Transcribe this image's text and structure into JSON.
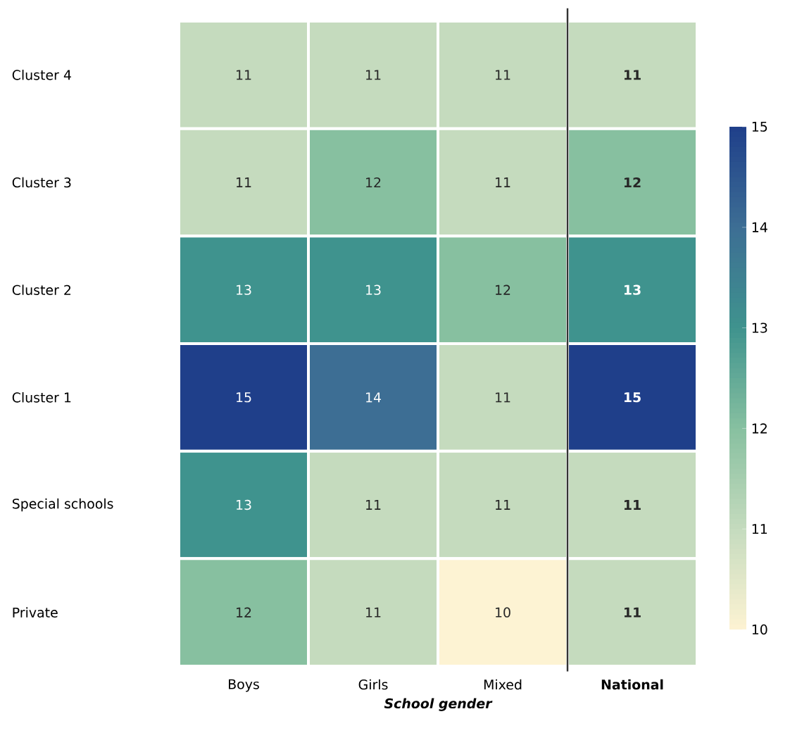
{
  "chart_data": {
    "type": "heatmap",
    "xlabel": "School gender",
    "categories": [
      "Boys",
      "Girls",
      "Mixed",
      "National"
    ],
    "y_categories": [
      "Cluster 4",
      "Cluster 3",
      "Cluster 2",
      "Cluster 1",
      "Special schools",
      "Private"
    ],
    "cells": [
      [
        11,
        11,
        11,
        11
      ],
      [
        11,
        12,
        11,
        12
      ],
      [
        13,
        13,
        12,
        13
      ],
      [
        15,
        14,
        11,
        15
      ],
      [
        13,
        11,
        11,
        11
      ],
      [
        12,
        11,
        10,
        11
      ]
    ],
    "clim": [
      10,
      15
    ],
    "cticks": [
      10,
      11,
      12,
      13,
      14,
      15
    ],
    "data_labels": true
  }
}
